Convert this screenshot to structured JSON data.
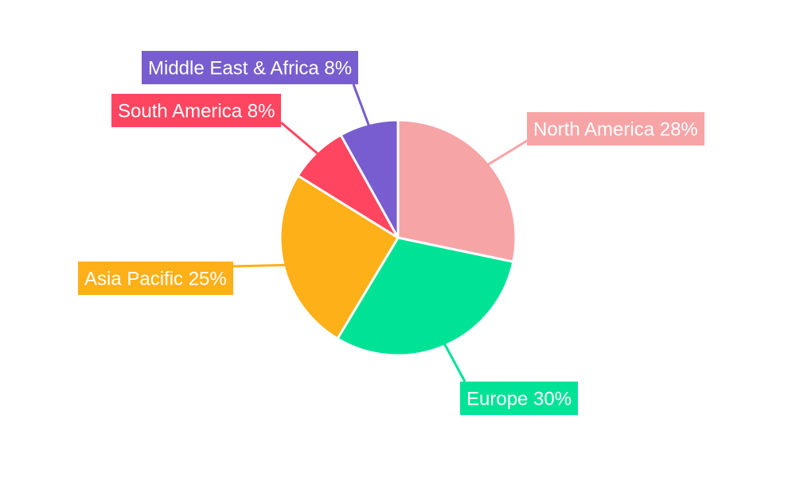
{
  "chart_data": {
    "type": "pie",
    "slices": [
      {
        "label": "North America 28%",
        "category": "North America",
        "value": 28,
        "color": "#f7a4a7"
      },
      {
        "label": "Europe 30%",
        "category": "Europe",
        "value": 30,
        "color": "#00e396"
      },
      {
        "label": "Asia Pacific 25%",
        "category": "Asia Pacific",
        "value": 25,
        "color": "#feb019"
      },
      {
        "label": "South America 8%",
        "category": "South America",
        "value": 8,
        "color": "#ff4560"
      },
      {
        "label": "Middle East & Africa 8%",
        "category": "Middle East & Africa",
        "value": 8,
        "color": "#775dd0"
      }
    ],
    "start_angle": "12 o'clock",
    "direction": "clockwise",
    "legend": "none",
    "labels": "outside with leader lines"
  }
}
